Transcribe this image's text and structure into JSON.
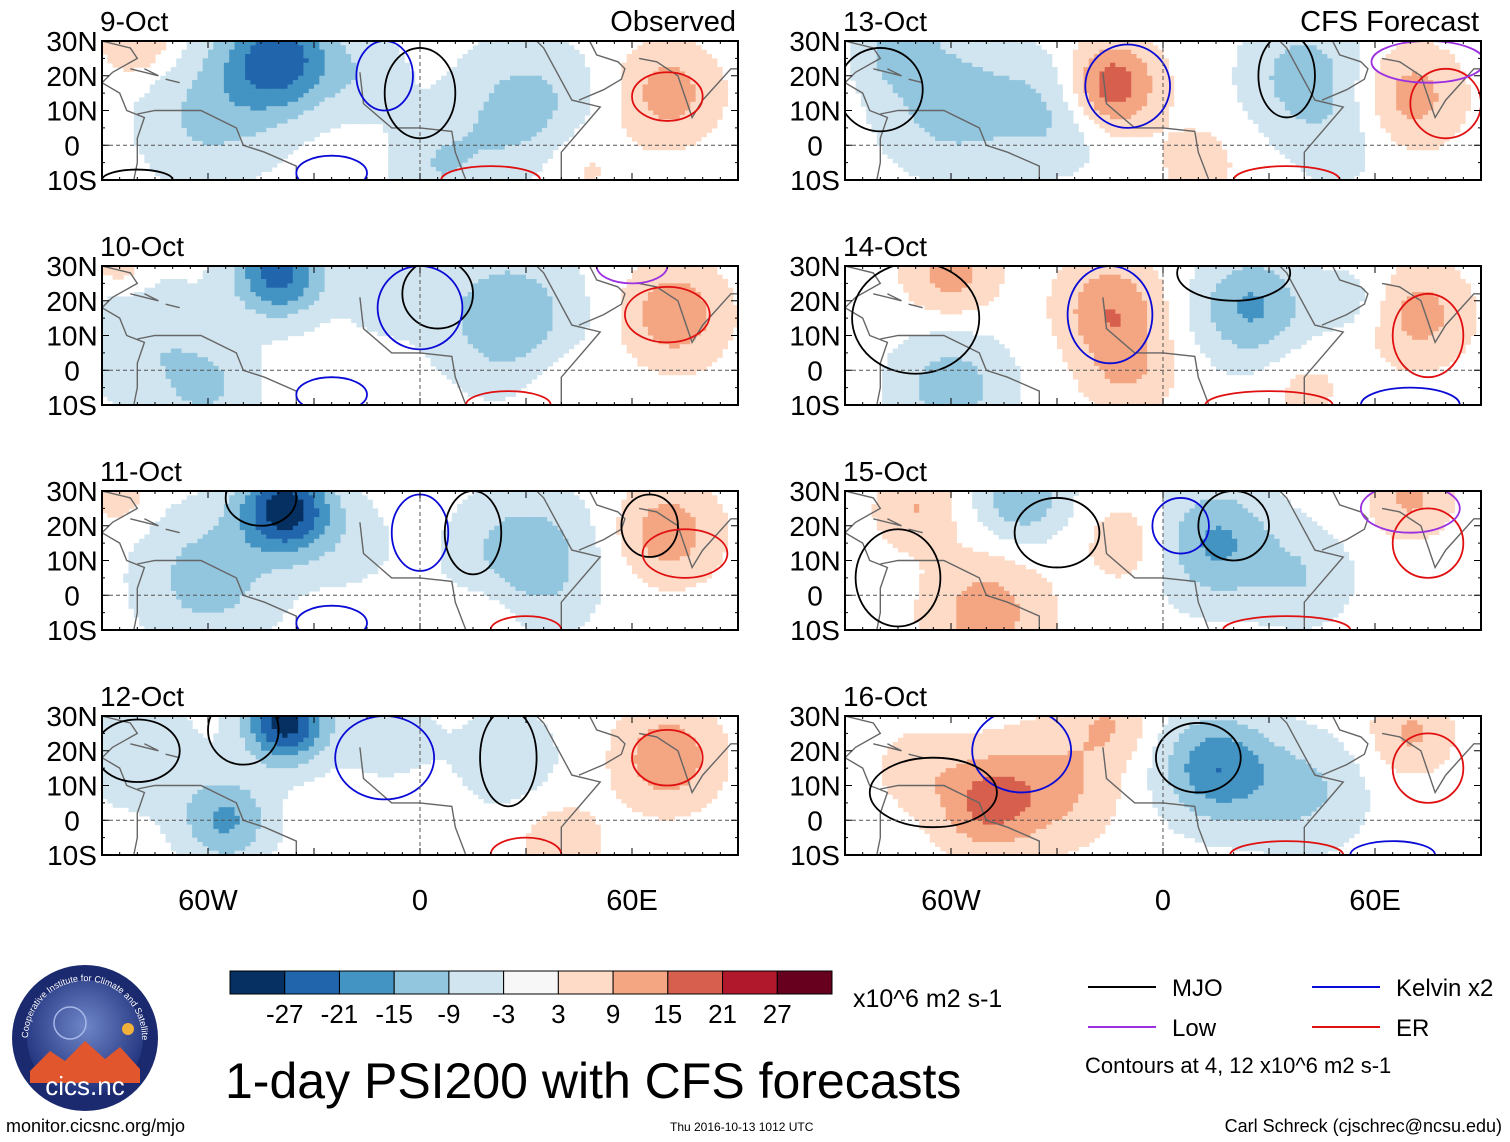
{
  "chart_data": {
    "type": "heatmap",
    "title": "1-day PSI200 with CFS forecasts",
    "variable": "PSI200 anomaly",
    "units": "x10^6 m2 s-1",
    "panel_labels": {
      "observed": "Observed",
      "forecast": "CFS Forecast"
    },
    "panels": [
      {
        "date": "9-Oct",
        "kind": "Observed",
        "corner_label": "Observed"
      },
      {
        "date": "10-Oct",
        "kind": "Observed",
        "corner_label": ""
      },
      {
        "date": "11-Oct",
        "kind": "Observed",
        "corner_label": ""
      },
      {
        "date": "12-Oct",
        "kind": "Observed",
        "corner_label": ""
      },
      {
        "date": "13-Oct",
        "kind": "CFS Forecast",
        "corner_label": "CFS Forecast"
      },
      {
        "date": "14-Oct",
        "kind": "CFS Forecast",
        "corner_label": ""
      },
      {
        "date": "15-Oct",
        "kind": "CFS Forecast",
        "corner_label": ""
      },
      {
        "date": "16-Oct",
        "kind": "CFS Forecast",
        "corner_label": ""
      }
    ],
    "x_ticks": [
      {
        "lon": -60,
        "label": "60W"
      },
      {
        "lon": 0,
        "label": "0"
      },
      {
        "lon": 60,
        "label": "60E"
      }
    ],
    "y_ticks": [
      {
        "lat": 30,
        "label": "30N"
      },
      {
        "lat": 20,
        "label": "20N"
      },
      {
        "lat": 10,
        "label": "10N"
      },
      {
        "lat": 0,
        "label": "0"
      },
      {
        "lat": -10,
        "label": "10S"
      }
    ],
    "xlim": [
      -90,
      90
    ],
    "ylim": [
      -10,
      30
    ],
    "colorbar": {
      "levels": [
        -27,
        -21,
        -15,
        -9,
        -3,
        3,
        9,
        15,
        21,
        27
      ],
      "tick_labels": [
        "-27",
        "-21",
        "-15",
        "-9",
        "-3",
        "3",
        "9",
        "15",
        "21",
        "27"
      ],
      "colors": [
        "#053061",
        "#2166ac",
        "#4393c3",
        "#92c5de",
        "#d1e5f0",
        "#f7f7f7",
        "#fddbc7",
        "#f4a582",
        "#d6604d",
        "#b2182b",
        "#67001f"
      ]
    },
    "contour_legend": [
      {
        "name": "MJO",
        "color": "#000000"
      },
      {
        "name": "Kelvin x2",
        "color": "#0a0ad6"
      },
      {
        "name": "Low",
        "color": "#9b30e0"
      },
      {
        "name": "ER",
        "color": "#e01010"
      }
    ],
    "contour_note": "Contours at 4, 12 x10^6 m2 s-1"
  },
  "footer": {
    "site": "monitor.cicsnc.org/mjo",
    "timestamp": "Thu 2016-10-13 1012 UTC",
    "credit": "Carl Schreck (cjschrec@ncsu.edu)"
  },
  "logo": {
    "ring_text": "Cooperative Institute for Climate and Satellites",
    "wordmark": "cics.nc"
  }
}
